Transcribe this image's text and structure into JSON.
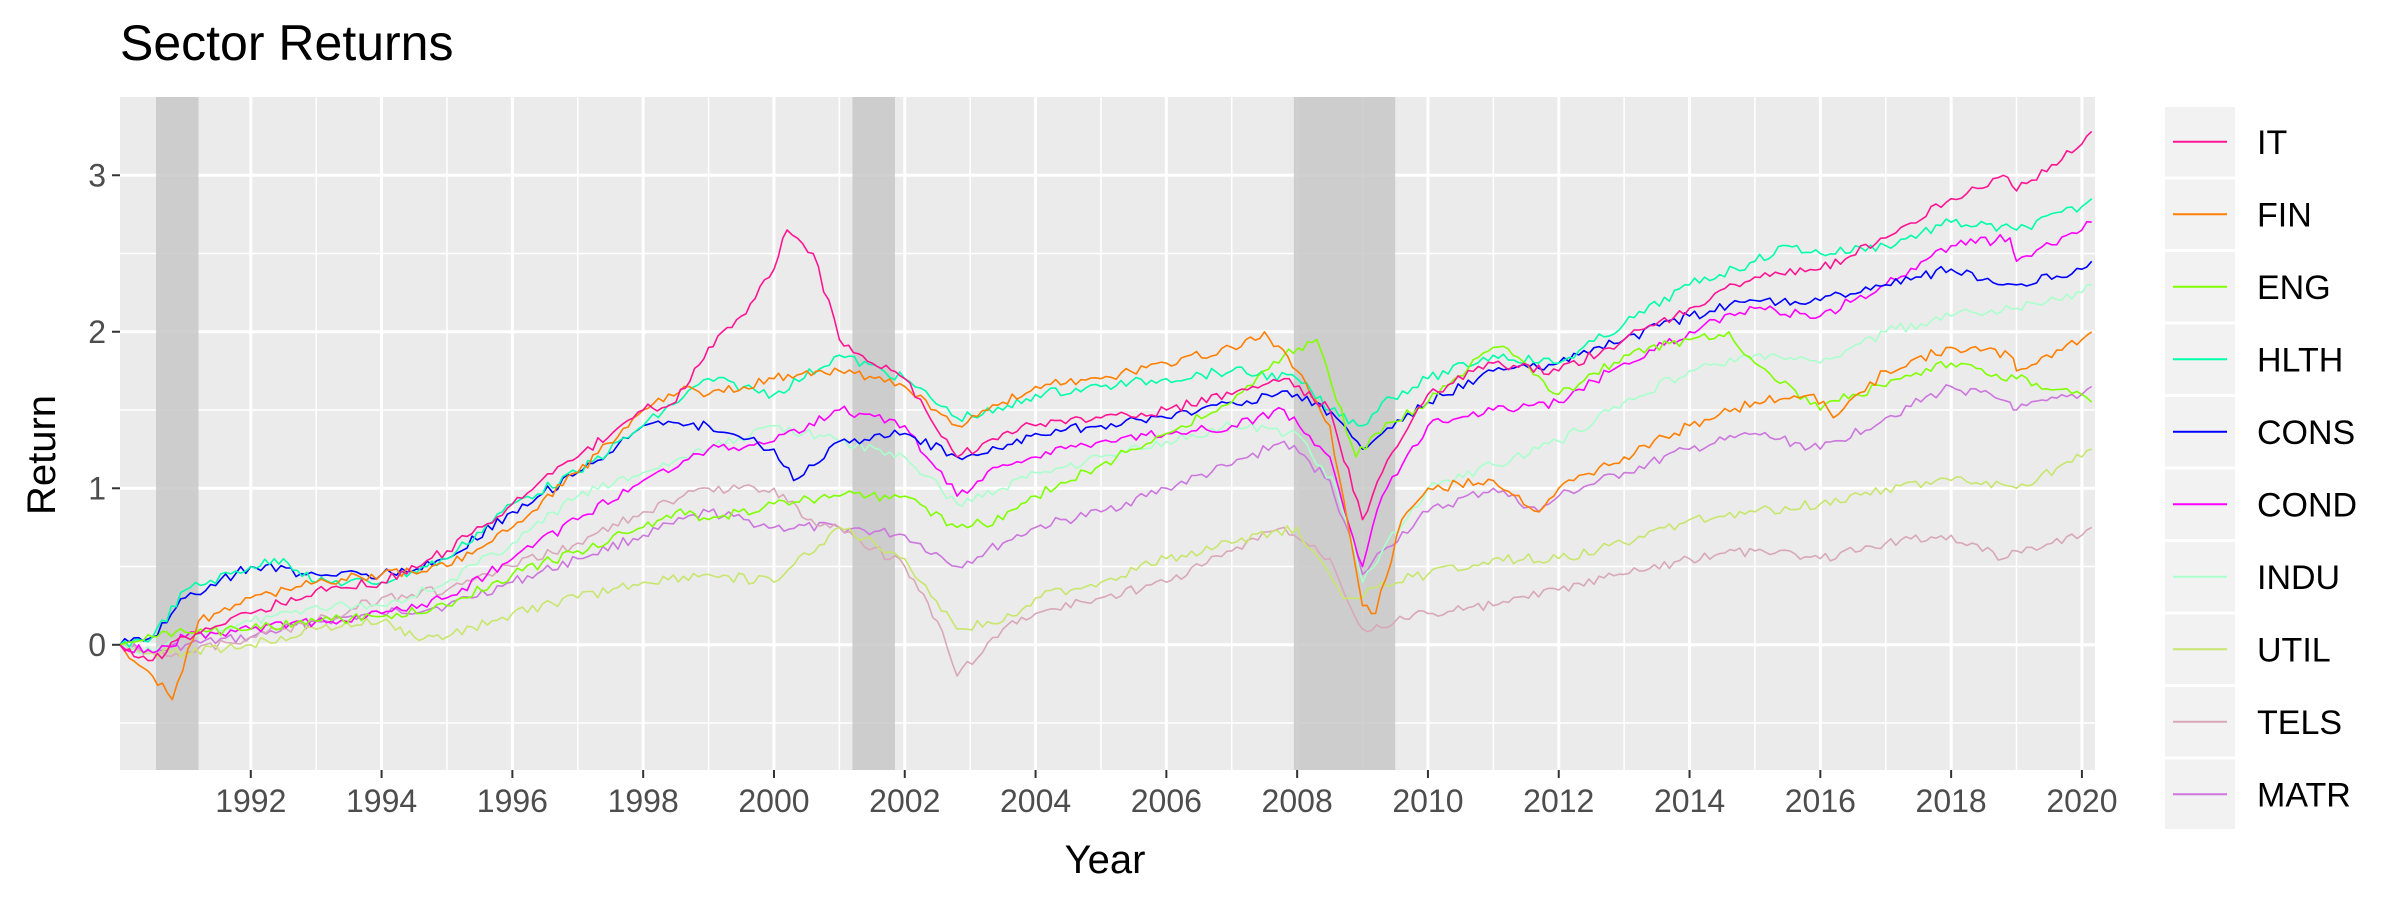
{
  "chart_data": {
    "type": "line",
    "title": "Sector Returns",
    "xlabel": "Year",
    "ylabel": "Return",
    "xlim": [
      1990.0,
      2020.2
    ],
    "ylim": [
      -0.8,
      3.5
    ],
    "x_ticks": [
      1992,
      1994,
      1996,
      1998,
      2000,
      2002,
      2004,
      2006,
      2008,
      2010,
      2012,
      2014,
      2016,
      2018,
      2020
    ],
    "x_tick_labels": [
      "1992",
      "1994",
      "1996",
      "1998",
      "2000",
      "2002",
      "2004",
      "2006",
      "2008",
      "2010",
      "2012",
      "2014",
      "2016",
      "2018",
      "2020"
    ],
    "y_ticks": [
      0,
      1,
      2,
      3
    ],
    "y_tick_labels": [
      "0",
      "1",
      "2",
      "3"
    ],
    "grid": true,
    "background": "#ebebeb",
    "shaded_periods": [
      [
        1990.55,
        1991.2
      ],
      [
        2001.2,
        2001.85
      ],
      [
        2007.95,
        2009.5
      ]
    ],
    "shade_color": "#c8c8c8",
    "legend_position": "right",
    "series": [
      {
        "name": "IT",
        "color": "#ff1493",
        "x": [
          1990.0,
          1990.5,
          1991.0,
          1992.0,
          1993.0,
          1994.0,
          1995.0,
          1996.0,
          1997.0,
          1998.0,
          1998.5,
          1999.0,
          1999.5,
          2000.0,
          2000.2,
          2000.6,
          2001.0,
          2001.5,
          2002.0,
          2002.8,
          2003.5,
          2004.0,
          2005.0,
          2006.0,
          2007.0,
          2007.8,
          2008.5,
          2009.0,
          2009.3,
          2010.0,
          2011.0,
          2012.0,
          2013.0,
          2014.0,
          2015.0,
          2016.0,
          2017.0,
          2018.0,
          2018.8,
          2019.0,
          2020.0,
          2020.15
        ],
        "y": [
          0.0,
          -0.1,
          0.05,
          0.2,
          0.35,
          0.4,
          0.6,
          0.9,
          1.2,
          1.5,
          1.55,
          1.9,
          2.1,
          2.4,
          2.65,
          2.5,
          1.95,
          1.8,
          1.7,
          1.2,
          1.35,
          1.4,
          1.45,
          1.5,
          1.6,
          1.7,
          1.5,
          0.8,
          1.1,
          1.6,
          1.8,
          1.75,
          1.95,
          2.15,
          2.35,
          2.4,
          2.6,
          2.85,
          3.0,
          2.9,
          3.2,
          3.28
        ]
      },
      {
        "name": "FIN",
        "color": "#ff7f00",
        "x": [
          1990.0,
          1990.5,
          1990.8,
          1991.2,
          1992.0,
          1993.0,
          1994.0,
          1995.0,
          1996.0,
          1997.0,
          1998.0,
          1998.7,
          1999.0,
          2000.0,
          2000.5,
          2001.0,
          2002.0,
          2002.8,
          2003.5,
          2004.0,
          2005.0,
          2006.0,
          2007.0,
          2007.5,
          2008.0,
          2008.5,
          2009.0,
          2009.2,
          2009.6,
          2010.0,
          2011.0,
          2011.7,
          2012.0,
          2013.0,
          2014.0,
          2015.0,
          2015.9,
          2016.2,
          2017.0,
          2018.0,
          2018.9,
          2019.0,
          2020.0,
          2020.15
        ],
        "y": [
          0.0,
          -0.2,
          -0.35,
          0.15,
          0.3,
          0.4,
          0.45,
          0.5,
          0.75,
          1.1,
          1.5,
          1.65,
          1.6,
          1.7,
          1.75,
          1.75,
          1.65,
          1.4,
          1.55,
          1.65,
          1.7,
          1.8,
          1.9,
          2.0,
          1.75,
          1.4,
          0.25,
          0.2,
          0.8,
          1.0,
          1.05,
          0.85,
          1.0,
          1.2,
          1.4,
          1.55,
          1.6,
          1.45,
          1.75,
          1.9,
          1.85,
          1.75,
          1.95,
          2.0
        ]
      },
      {
        "name": "ENG",
        "color": "#7fff00",
        "x": [
          1990.0,
          1990.5,
          1991.0,
          1992.0,
          1993.0,
          1994.0,
          1995.0,
          1996.0,
          1997.0,
          1998.0,
          1998.5,
          1999.0,
          2000.0,
          2001.0,
          2002.0,
          2002.8,
          2003.5,
          2004.0,
          2005.0,
          2006.0,
          2007.0,
          2007.8,
          2008.3,
          2008.9,
          2009.2,
          2010.0,
          2011.0,
          2011.3,
          2012.0,
          2013.0,
          2014.0,
          2014.6,
          2015.0,
          2016.0,
          2016.5,
          2017.0,
          2018.0,
          2019.0,
          2020.0,
          2020.15
        ],
        "y": [
          0.0,
          0.05,
          0.08,
          0.1,
          0.15,
          0.18,
          0.25,
          0.45,
          0.6,
          0.75,
          0.85,
          0.8,
          0.9,
          0.95,
          0.95,
          0.75,
          0.8,
          0.95,
          1.15,
          1.35,
          1.55,
          1.85,
          1.95,
          1.2,
          1.35,
          1.55,
          1.9,
          1.85,
          1.6,
          1.85,
          1.95,
          2.0,
          1.8,
          1.5,
          1.6,
          1.65,
          1.8,
          1.7,
          1.6,
          1.55
        ]
      },
      {
        "name": "HLTH",
        "color": "#00ffaa",
        "x": [
          1990.0,
          1990.5,
          1991.0,
          1992.0,
          1992.5,
          1993.0,
          1994.0,
          1995.0,
          1996.0,
          1997.0,
          1998.0,
          1999.0,
          2000.0,
          2001.0,
          2002.0,
          2002.8,
          2003.5,
          2004.0,
          2005.0,
          2006.0,
          2007.0,
          2008.0,
          2008.5,
          2009.0,
          2009.3,
          2010.0,
          2011.0,
          2012.0,
          2013.0,
          2014.0,
          2015.0,
          2015.5,
          2016.0,
          2017.0,
          2018.0,
          2019.0,
          2020.0,
          2020.15
        ],
        "y": [
          0.0,
          0.05,
          0.35,
          0.5,
          0.55,
          0.4,
          0.4,
          0.55,
          0.9,
          1.1,
          1.4,
          1.7,
          1.6,
          1.85,
          1.7,
          1.45,
          1.5,
          1.6,
          1.65,
          1.7,
          1.75,
          1.7,
          1.5,
          1.4,
          1.55,
          1.7,
          1.85,
          1.8,
          2.05,
          2.3,
          2.45,
          2.55,
          2.5,
          2.55,
          2.7,
          2.65,
          2.8,
          2.85
        ]
      },
      {
        "name": "CONS",
        "color": "#0000ff",
        "x": [
          1990.0,
          1990.5,
          1991.0,
          1992.0,
          1993.0,
          1994.0,
          1995.0,
          1996.0,
          1997.0,
          1998.0,
          1999.0,
          2000.0,
          2000.3,
          2001.0,
          2002.0,
          2002.8,
          2003.5,
          2004.0,
          2005.0,
          2006.0,
          2007.0,
          2008.0,
          2008.6,
          2009.0,
          2009.3,
          2010.0,
          2011.0,
          2012.0,
          2013.0,
          2014.0,
          2015.0,
          2016.0,
          2017.0,
          2018.0,
          2018.8,
          2019.0,
          2020.0,
          2020.15
        ],
        "y": [
          0.0,
          0.05,
          0.3,
          0.5,
          0.45,
          0.45,
          0.55,
          0.85,
          1.1,
          1.4,
          1.4,
          1.25,
          1.05,
          1.3,
          1.35,
          1.2,
          1.25,
          1.35,
          1.4,
          1.45,
          1.55,
          1.6,
          1.45,
          1.25,
          1.35,
          1.55,
          1.75,
          1.8,
          1.95,
          2.1,
          2.2,
          2.2,
          2.3,
          2.4,
          2.3,
          2.3,
          2.4,
          2.45
        ]
      },
      {
        "name": "COND",
        "color": "#ff00ff",
        "x": [
          1990.0,
          1990.5,
          1991.0,
          1992.0,
          1993.0,
          1994.0,
          1995.0,
          1996.0,
          1997.0,
          1998.0,
          1999.0,
          2000.0,
          2001.0,
          2002.0,
          2002.8,
          2003.5,
          2004.0,
          2005.0,
          2006.0,
          2007.0,
          2007.8,
          2008.5,
          2009.0,
          2009.3,
          2010.0,
          2011.0,
          2012.0,
          2013.0,
          2014.0,
          2015.0,
          2016.0,
          2017.0,
          2018.0,
          2018.9,
          2019.0,
          2020.0,
          2020.15
        ],
        "y": [
          0.0,
          -0.05,
          0.05,
          0.1,
          0.15,
          0.2,
          0.3,
          0.55,
          0.8,
          1.05,
          1.25,
          1.3,
          1.5,
          1.4,
          0.95,
          1.15,
          1.2,
          1.3,
          1.35,
          1.4,
          1.5,
          1.2,
          0.5,
          0.95,
          1.4,
          1.5,
          1.55,
          1.8,
          2.0,
          2.15,
          2.1,
          2.3,
          2.55,
          2.6,
          2.45,
          2.65,
          2.7
        ]
      },
      {
        "name": "INDU",
        "color": "#aaffcc",
        "x": [
          1990.0,
          1990.5,
          1991.0,
          1992.0,
          1993.0,
          1994.0,
          1995.0,
          1996.0,
          1997.0,
          1998.0,
          1999.0,
          2000.0,
          2001.0,
          2002.0,
          2002.8,
          2003.5,
          2004.0,
          2005.0,
          2006.0,
          2007.0,
          2008.0,
          2008.6,
          2009.0,
          2009.3,
          2010.0,
          2011.0,
          2012.0,
          2013.0,
          2014.0,
          2015.0,
          2016.0,
          2017.0,
          2018.0,
          2019.0,
          2020.0,
          2020.15
        ],
        "y": [
          0.0,
          -0.05,
          0.05,
          0.15,
          0.25,
          0.25,
          0.4,
          0.65,
          0.95,
          1.1,
          1.25,
          1.4,
          1.3,
          1.2,
          0.9,
          1.0,
          1.1,
          1.2,
          1.3,
          1.4,
          1.35,
          1.0,
          0.4,
          0.6,
          1.0,
          1.15,
          1.3,
          1.55,
          1.75,
          1.85,
          1.8,
          2.0,
          2.1,
          2.15,
          2.25,
          2.3
        ]
      },
      {
        "name": "UTIL",
        "color": "#c8e66e",
        "x": [
          1990.0,
          1990.5,
          1991.0,
          1992.0,
          1993.0,
          1994.0,
          1994.5,
          1995.0,
          1996.0,
          1997.0,
          1998.0,
          1999.0,
          2000.0,
          2001.0,
          2002.0,
          2002.8,
          2003.5,
          2004.0,
          2005.0,
          2006.0,
          2007.0,
          2008.0,
          2008.7,
          2009.0,
          2009.3,
          2010.0,
          2011.0,
          2012.0,
          2013.0,
          2014.0,
          2015.0,
          2016.0,
          2017.0,
          2018.0,
          2019.0,
          2020.0,
          2020.15
        ],
        "y": [
          0.0,
          -0.05,
          -0.05,
          0.0,
          0.1,
          0.15,
          0.05,
          0.05,
          0.2,
          0.3,
          0.4,
          0.45,
          0.4,
          0.75,
          0.55,
          0.1,
          0.15,
          0.3,
          0.4,
          0.55,
          0.65,
          0.75,
          0.3,
          0.3,
          0.4,
          0.45,
          0.55,
          0.55,
          0.65,
          0.8,
          0.85,
          0.9,
          1.0,
          1.05,
          1.0,
          1.2,
          1.25
        ]
      },
      {
        "name": "TELS",
        "color": "#d8a8b8",
        "x": [
          1990.0,
          1990.5,
          1991.0,
          1992.0,
          1993.0,
          1994.0,
          1995.0,
          1996.0,
          1997.0,
          1998.0,
          1999.0,
          2000.0,
          2000.5,
          2001.0,
          2002.0,
          2002.5,
          2002.8,
          2003.5,
          2004.0,
          2005.0,
          2006.0,
          2007.0,
          2007.8,
          2008.5,
          2009.0,
          2009.5,
          2010.0,
          2011.0,
          2012.0,
          2013.0,
          2014.0,
          2015.0,
          2016.0,
          2017.0,
          2018.0,
          2018.8,
          2019.0,
          2020.0,
          2020.15
        ],
        "y": [
          0.0,
          -0.05,
          -0.05,
          0.05,
          0.15,
          0.3,
          0.35,
          0.5,
          0.65,
          0.85,
          1.0,
          1.0,
          0.8,
          0.75,
          0.5,
          0.15,
          -0.2,
          0.1,
          0.2,
          0.3,
          0.4,
          0.6,
          0.75,
          0.55,
          0.1,
          0.15,
          0.2,
          0.25,
          0.35,
          0.45,
          0.55,
          0.6,
          0.55,
          0.65,
          0.7,
          0.55,
          0.6,
          0.7,
          0.75
        ]
      },
      {
        "name": "MATR",
        "color": "#cc77dd",
        "x": [
          1990.0,
          1990.5,
          1991.0,
          1992.0,
          1993.0,
          1994.0,
          1995.0,
          1996.0,
          1997.0,
          1998.0,
          1999.0,
          2000.0,
          2001.0,
          2002.0,
          2002.8,
          2003.5,
          2004.0,
          2005.0,
          2006.0,
          2007.0,
          2007.8,
          2008.5,
          2009.0,
          2009.3,
          2010.0,
          2011.0,
          2011.7,
          2012.0,
          2013.0,
          2014.0,
          2015.0,
          2016.0,
          2017.0,
          2018.0,
          2018.9,
          2019.0,
          2020.0,
          2020.15
        ],
        "y": [
          0.0,
          -0.05,
          0.0,
          0.05,
          0.15,
          0.2,
          0.25,
          0.4,
          0.55,
          0.7,
          0.85,
          0.75,
          0.75,
          0.7,
          0.5,
          0.65,
          0.75,
          0.85,
          1.0,
          1.15,
          1.3,
          1.05,
          0.45,
          0.6,
          0.85,
          1.0,
          0.85,
          0.95,
          1.1,
          1.25,
          1.35,
          1.25,
          1.45,
          1.65,
          1.55,
          1.5,
          1.6,
          1.65
        ]
      }
    ]
  }
}
